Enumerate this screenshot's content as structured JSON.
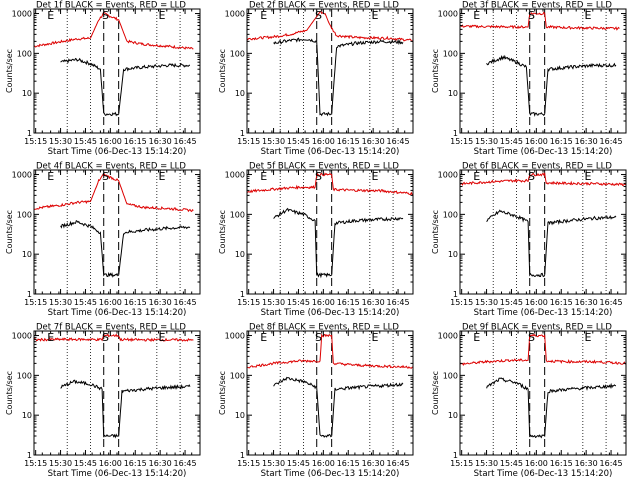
{
  "chart_data": {
    "type": "line",
    "layout": "3x3 grid of line plots",
    "shared": {
      "xlabel": "Start Time (06-Dec-13 15:14:20)",
      "ylabel": "Counts/sec",
      "x_ticks": [
        "15:15",
        "15:30",
        "15:45",
        "16:00",
        "16:15",
        "16:30",
        "16:45"
      ],
      "x_range": [
        "15:14",
        "16:54"
      ],
      "y_ticks": [
        "1",
        "10",
        "100",
        "1000"
      ],
      "ylim": [
        1,
        1300
      ],
      "y_scale": "log",
      "annotations": [
        "E",
        "S",
        "E"
      ],
      "series_colors": {
        "events": "#000000",
        "lld": "#dd0000"
      },
      "vertical_dotted_lines": [
        "15:34",
        "15:48",
        "16:28",
        "16:42"
      ],
      "vertical_dashed_lines": [
        "15:56",
        "16:05"
      ]
    },
    "panels": [
      {
        "title": "Det 1f BLACK = Events, RED = LLD",
        "lld": {
          "times": [
            "15:14",
            "15:30",
            "15:40",
            "15:48",
            "15:53",
            "15:56",
            "16:05",
            "16:10",
            "16:20",
            "16:35",
            "16:50"
          ],
          "values": [
            150,
            195,
            230,
            240,
            700,
            1000,
            700,
            200,
            170,
            150,
            130
          ]
        },
        "events": {
          "times": [
            "15:30",
            "15:40",
            "15:48",
            "15:54",
            "15:56",
            "16:05",
            "16:08",
            "16:20",
            "16:35",
            "16:48"
          ],
          "values": [
            60,
            70,
            55,
            40,
            3,
            3,
            40,
            45,
            50,
            50
          ]
        }
      },
      {
        "title": "Det 2f BLACK = Events, RED = LLD",
        "lld": {
          "times": [
            "15:14",
            "15:30",
            "15:40",
            "15:50",
            "15:58",
            "16:01",
            "16:04",
            "16:08",
            "16:20",
            "16:40",
            "16:54"
          ],
          "values": [
            230,
            260,
            300,
            380,
            1100,
            1000,
            500,
            280,
            250,
            240,
            210
          ]
        },
        "events": {
          "times": [
            "15:30",
            "15:40",
            "15:50",
            "15:56",
            "15:58",
            "16:05",
            "16:08",
            "16:20",
            "16:35",
            "16:48"
          ],
          "values": [
            180,
            210,
            230,
            200,
            3,
            3,
            150,
            180,
            200,
            190
          ]
        }
      },
      {
        "title": "Det 3f BLACK = Events, RED = LLD",
        "lld": {
          "times": [
            "15:14",
            "15:30",
            "15:45",
            "15:55",
            "15:56",
            "16:05",
            "16:06",
            "16:20",
            "16:35",
            "16:50"
          ],
          "values": [
            480,
            470,
            460,
            460,
            1000,
            1000,
            460,
            440,
            430,
            420
          ]
        },
        "events": {
          "times": [
            "15:30",
            "15:40",
            "15:48",
            "15:54",
            "15:56",
            "16:05",
            "16:07",
            "16:20",
            "16:35",
            "16:48"
          ],
          "values": [
            55,
            80,
            60,
            45,
            3,
            3,
            40,
            45,
            50,
            50
          ]
        }
      },
      {
        "title": "Det 4f BLACK = Events, RED = LLD",
        "lld": {
          "times": [
            "15:14",
            "15:30",
            "15:40",
            "15:48",
            "15:53",
            "15:56",
            "16:05",
            "16:10",
            "16:20",
            "16:35",
            "16:50"
          ],
          "values": [
            140,
            170,
            200,
            210,
            700,
            1000,
            700,
            180,
            150,
            140,
            125
          ]
        },
        "events": {
          "times": [
            "15:30",
            "15:40",
            "15:48",
            "15:54",
            "15:56",
            "16:05",
            "16:08",
            "16:20",
            "16:35",
            "16:48"
          ],
          "values": [
            50,
            65,
            50,
            35,
            3,
            3,
            35,
            40,
            45,
            48
          ]
        }
      },
      {
        "title": "Det 5f BLACK = Events, RED = LLD",
        "lld": {
          "times": [
            "15:14",
            "15:30",
            "15:45",
            "15:55",
            "15:56",
            "16:05",
            "16:06",
            "16:20",
            "16:35",
            "16:54"
          ],
          "values": [
            370,
            430,
            480,
            480,
            1000,
            1000,
            420,
            400,
            390,
            330
          ]
        },
        "events": {
          "times": [
            "15:30",
            "15:38",
            "15:48",
            "15:55",
            "15:56",
            "16:05",
            "16:07",
            "16:20",
            "16:35",
            "16:48"
          ],
          "values": [
            80,
            130,
            100,
            70,
            3,
            3,
            60,
            70,
            75,
            80
          ]
        }
      },
      {
        "title": "Det 6f BLACK = Events, RED = LLD",
        "lld": {
          "times": [
            "15:14",
            "15:30",
            "15:45",
            "15:55",
            "15:56",
            "16:05",
            "16:06",
            "16:20",
            "16:35",
            "16:54"
          ],
          "values": [
            580,
            650,
            700,
            700,
            1000,
            1000,
            620,
            600,
            590,
            560
          ]
        },
        "events": {
          "times": [
            "15:30",
            "15:38",
            "15:48",
            "15:55",
            "15:56",
            "16:05",
            "16:07",
            "16:20",
            "16:35",
            "16:48"
          ],
          "values": [
            70,
            120,
            90,
            65,
            3,
            3,
            60,
            70,
            80,
            85
          ]
        }
      },
      {
        "title": "Det 7f BLACK = Events, RED = LLD",
        "lld": {
          "times": [
            "15:14",
            "15:30",
            "15:45",
            "15:55",
            "15:56",
            "16:05",
            "16:06",
            "16:20",
            "16:35",
            "16:50"
          ],
          "values": [
            780,
            800,
            800,
            790,
            1000,
            1000,
            790,
            780,
            780,
            770
          ]
        },
        "events": {
          "times": [
            "15:30",
            "15:38",
            "15:48",
            "15:55",
            "15:56",
            "16:05",
            "16:07",
            "16:20",
            "16:35",
            "16:48"
          ],
          "values": [
            50,
            70,
            60,
            45,
            3,
            3,
            40,
            45,
            50,
            52
          ]
        }
      },
      {
        "title": "Det 8f BLACK = Events, RED = LLD",
        "lld": {
          "times": [
            "15:14",
            "15:30",
            "15:45",
            "15:58",
            "15:59",
            "16:05",
            "16:06",
            "16:20",
            "16:35",
            "16:54"
          ],
          "values": [
            160,
            200,
            230,
            230,
            1000,
            1000,
            200,
            180,
            170,
            160
          ]
        },
        "events": {
          "times": [
            "15:30",
            "15:38",
            "15:48",
            "15:56",
            "15:58",
            "16:05",
            "16:07",
            "16:20",
            "16:35",
            "16:48"
          ],
          "values": [
            55,
            85,
            70,
            50,
            3,
            3,
            45,
            50,
            55,
            60
          ]
        }
      },
      {
        "title": "Det 9f BLACK = Events, RED = LLD",
        "lld": {
          "times": [
            "15:14",
            "15:30",
            "15:45",
            "15:55",
            "15:56",
            "16:05",
            "16:06",
            "16:20",
            "16:35",
            "16:54"
          ],
          "values": [
            190,
            220,
            240,
            240,
            1000,
            1000,
            230,
            220,
            220,
            200
          ]
        },
        "events": {
          "times": [
            "15:30",
            "15:38",
            "15:48",
            "15:55",
            "15:56",
            "16:05",
            "16:07",
            "16:20",
            "16:35",
            "16:48"
          ],
          "values": [
            50,
            80,
            65,
            45,
            3,
            3,
            40,
            45,
            50,
            55
          ]
        }
      }
    ]
  }
}
